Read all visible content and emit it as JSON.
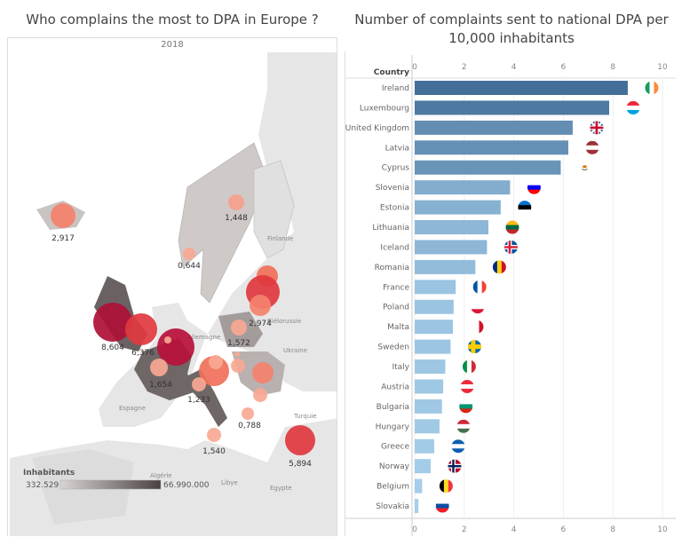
{
  "left": {
    "title": "Who complains the most to DPA in Europe ?",
    "subtitle": "2018",
    "map_labels": [
      "Finlande",
      "Biélorussie",
      "Ukraine",
      "Allemagne",
      "Espagne",
      "Turquie",
      "Algérie",
      "Libye",
      "Egypte"
    ],
    "bubbles": [
      {
        "country": "Iceland",
        "value_label": "2,917",
        "color": "#f4826c"
      },
      {
        "country": "Sweden",
        "value_label": "1,448",
        "color": "#f6a08c"
      },
      {
        "country": "Norway",
        "value_label": "0,644",
        "color": "#f7a893"
      },
      {
        "country": "Estonia",
        "value_label": "",
        "color": "#f0705a"
      },
      {
        "country": "Latvia",
        "value_label": "",
        "color": "#e0383e"
      },
      {
        "country": "Lithuania",
        "value_label": "2,974",
        "color": "#f4826c"
      },
      {
        "country": "Ireland",
        "value_label": "8,604",
        "color": "#ae1035"
      },
      {
        "country": "United Kingdom",
        "value_label": "6,376",
        "color": "#e0383e"
      },
      {
        "country": "Luxembourg",
        "value_label": "",
        "color": "#b8103a"
      },
      {
        "country": "Belgium",
        "value_label": "",
        "color": "#f7a893"
      },
      {
        "country": "Poland",
        "value_label": "1,572",
        "color": "#f7a893"
      },
      {
        "country": "France",
        "value_label": "1,654",
        "color": "#f7a893"
      },
      {
        "country": "Slovenia",
        "value_label": "",
        "color": "#f0705a"
      },
      {
        "country": "Austria",
        "value_label": "",
        "color": "#f7a893"
      },
      {
        "country": "Slovakia",
        "value_label": "",
        "color": "#f7a893"
      },
      {
        "country": "Hungary",
        "value_label": "",
        "color": "#f7a893"
      },
      {
        "country": "Romania",
        "value_label": "",
        "color": "#f4826c"
      },
      {
        "country": "Bulgaria",
        "value_label": "",
        "color": "#f7a893"
      },
      {
        "country": "Italy",
        "value_label": "1,233",
        "color": "#f7a893"
      },
      {
        "country": "Greece",
        "value_label": "0,788",
        "color": "#f7a893"
      },
      {
        "country": "Malta",
        "value_label": "1,540",
        "color": "#f7a893"
      },
      {
        "country": "Cyprus",
        "value_label": "5,894",
        "color": "#e0383e"
      }
    ],
    "legend": {
      "title": "Inhabitants",
      "min": "332.529",
      "max": "66.990.000",
      "color_min": "#d9d4d2",
      "color_max": "#4a4242"
    }
  },
  "chart_data": {
    "type": "bar",
    "orientation": "horizontal",
    "title": "Number of complaints sent to national DPA per 10,000 inhabitants",
    "ylabel": "Country",
    "xlabel": "",
    "xlim": [
      0,
      10
    ],
    "xticks": [
      "0",
      "2",
      "4",
      "6",
      "8",
      "10"
    ],
    "grid": true,
    "categories": [
      "Ireland",
      "Luxembourg",
      "United Kingdom",
      "Latvia",
      "Cyprus",
      "Slovenia",
      "Estonia",
      "Lithuania",
      "Iceland",
      "Romania",
      "France",
      "Poland",
      "Malta",
      "Sweden",
      "Italy",
      "Austria",
      "Bulgaria",
      "Hungary",
      "Greece",
      "Norway",
      "Belgium",
      "Slovakia"
    ],
    "values": [
      8.6,
      7.85,
      6.376,
      6.2,
      5.894,
      3.85,
      3.47,
      2.974,
      2.917,
      2.45,
      1.654,
      1.572,
      1.54,
      1.448,
      1.233,
      1.15,
      1.1,
      1.0,
      0.788,
      0.644,
      0.3,
      0.15
    ],
    "color_scale": [
      "#a6cfeb",
      "#2d5986"
    ],
    "flags": [
      {
        "dir": "v",
        "stripes": [
          "#169b62",
          "#ffffff",
          "#ff883e"
        ]
      },
      {
        "dir": "h",
        "stripes": [
          "#ed2939",
          "#ffffff",
          "#00a1de"
        ]
      },
      {
        "dir": "uk",
        "stripes": [
          "#012169",
          "#ffffff",
          "#c8102e"
        ]
      },
      {
        "dir": "h",
        "stripes": [
          "#9e3039",
          "#ffffff",
          "#9e3039"
        ]
      },
      {
        "dir": "cy",
        "stripes": [
          "#ffffff",
          "#d57800",
          "#4e5b31"
        ]
      },
      {
        "dir": "h",
        "stripes": [
          "#ffffff",
          "#0000ff",
          "#ff0000"
        ]
      },
      {
        "dir": "h",
        "stripes": [
          "#0072ce",
          "#000000",
          "#ffffff"
        ]
      },
      {
        "dir": "h",
        "stripes": [
          "#fdb913",
          "#006a44",
          "#c1272d"
        ]
      },
      {
        "dir": "nordic",
        "stripes": [
          "#02529c",
          "#ffffff",
          "#dc1e35"
        ]
      },
      {
        "dir": "v",
        "stripes": [
          "#002b7f",
          "#fcd116",
          "#ce1126"
        ]
      },
      {
        "dir": "v",
        "stripes": [
          "#0055a4",
          "#ffffff",
          "#ef4135"
        ]
      },
      {
        "dir": "h",
        "stripes": [
          "#ffffff",
          "#ffffff",
          "#dc143c"
        ]
      },
      {
        "dir": "v",
        "stripes": [
          "#ffffff",
          "#ffffff",
          "#cf142b"
        ]
      },
      {
        "dir": "nordic",
        "stripes": [
          "#006aa7",
          "#fecc00",
          "#fecc00"
        ]
      },
      {
        "dir": "v",
        "stripes": [
          "#009246",
          "#ffffff",
          "#ce2b37"
        ]
      },
      {
        "dir": "h",
        "stripes": [
          "#ed2939",
          "#ffffff",
          "#ed2939"
        ]
      },
      {
        "dir": "h",
        "stripes": [
          "#ffffff",
          "#00966e",
          "#d62612"
        ]
      },
      {
        "dir": "h",
        "stripes": [
          "#ce2939",
          "#ffffff",
          "#477050"
        ]
      },
      {
        "dir": "h",
        "stripes": [
          "#0d5eaf",
          "#ffffff",
          "#0d5eaf"
        ]
      },
      {
        "dir": "nordic",
        "stripes": [
          "#ba0c2f",
          "#ffffff",
          "#00205b"
        ]
      },
      {
        "dir": "v",
        "stripes": [
          "#000000",
          "#fdda24",
          "#ef3340"
        ]
      },
      {
        "dir": "h",
        "stripes": [
          "#ffffff",
          "#0b4ea2",
          "#ee1c25"
        ]
      }
    ]
  }
}
